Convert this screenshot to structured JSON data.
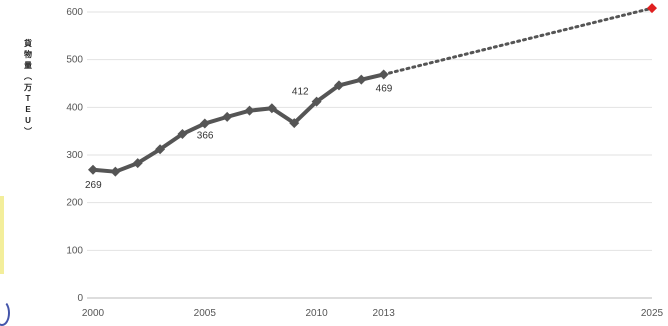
{
  "chart_data": {
    "type": "line",
    "title": "",
    "xlabel": "",
    "ylabel": [
      "貨",
      "物",
      "量",
      "︵",
      "万",
      "T",
      "E",
      "U",
      "︶"
    ],
    "xlim": [
      2000,
      2025
    ],
    "ylim": [
      0,
      600
    ],
    "x_ticks": [
      "2000",
      "2005",
      "2010",
      "2013",
      "2025"
    ],
    "y_ticks": [
      "0",
      "100",
      "200",
      "300",
      "400",
      "500",
      "600"
    ],
    "grid": true,
    "series": [
      {
        "style": "solid",
        "marker": "diamond",
        "color": "#555555",
        "x": [
          2000,
          2001,
          2002,
          2003,
          2004,
          2005,
          2006,
          2007,
          2008,
          2009,
          2010,
          2011,
          2012,
          2013
        ],
        "y": [
          269,
          265,
          283,
          312,
          344,
          366,
          380,
          393,
          398,
          367,
          412,
          446,
          458,
          469
        ]
      },
      {
        "style": "dotted",
        "color": "#555555",
        "x": [
          2013,
          2025
        ],
        "y": [
          469,
          608
        ]
      }
    ],
    "target_point": {
      "x": 2025,
      "y": 608,
      "color": "#e02020",
      "marker": "diamond"
    },
    "data_labels": [
      {
        "x": 2000,
        "y": 269,
        "text": "269"
      },
      {
        "x": 2005,
        "y": 366,
        "text": "366"
      },
      {
        "x": 2010,
        "y": 412,
        "text": "412"
      },
      {
        "x": 2013,
        "y": 469,
        "text": "469"
      }
    ]
  }
}
